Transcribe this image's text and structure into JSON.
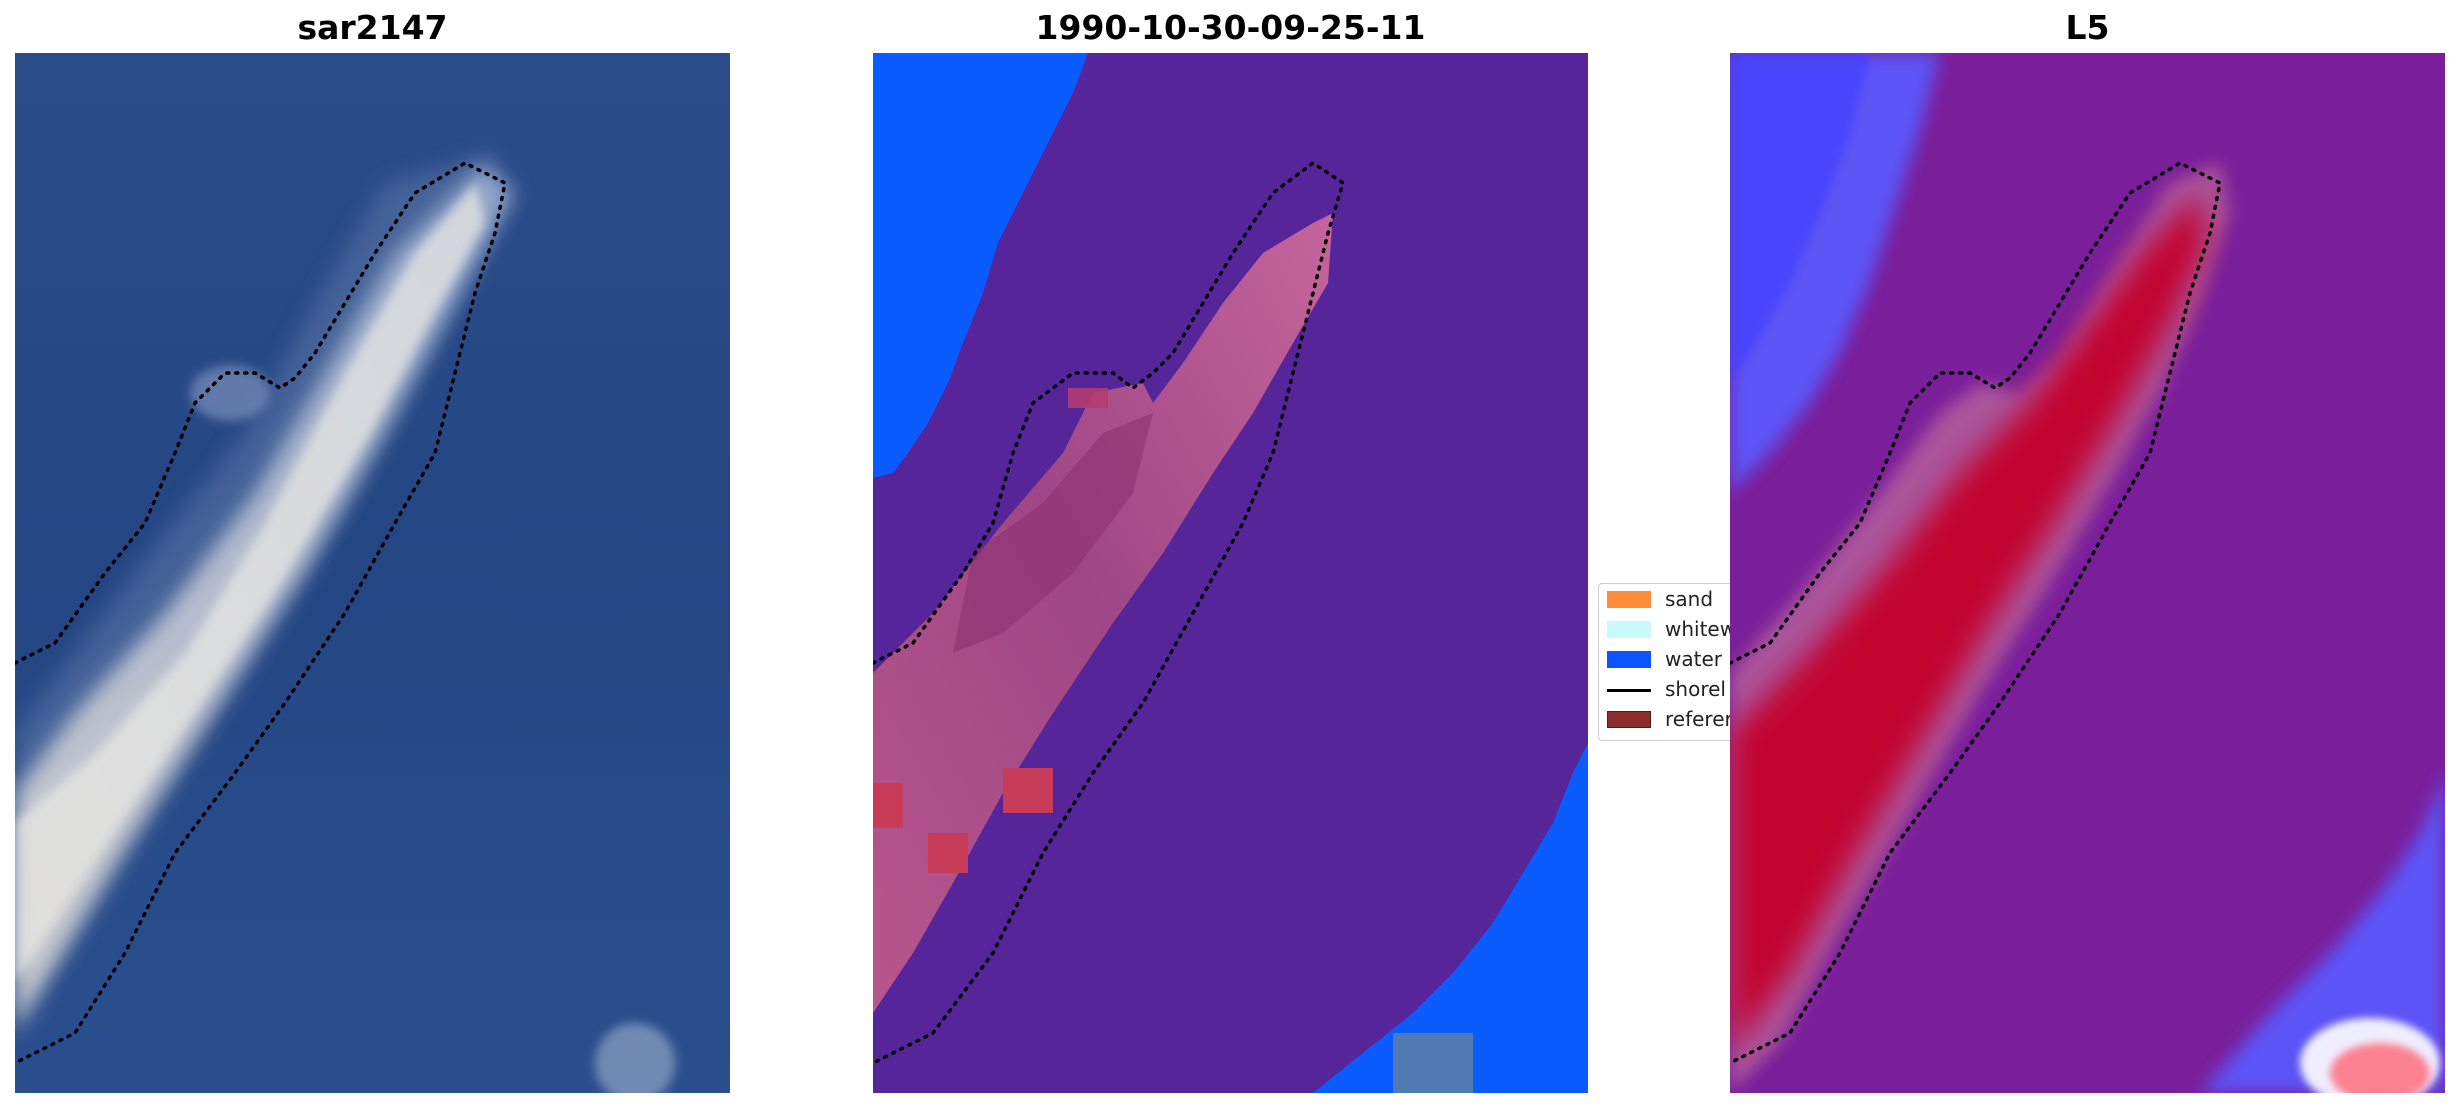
{
  "panels": [
    {
      "title": "sar2147"
    },
    {
      "title": "1990-10-30-09-25-11"
    },
    {
      "title": "L5"
    }
  ],
  "legend": {
    "items": [
      {
        "label": "sand",
        "color": "#ff8c3a",
        "kind": "patch"
      },
      {
        "label": "whitew",
        "color": "#c9fbfb",
        "kind": "patch"
      },
      {
        "label": "water",
        "color": "#0a55ff",
        "kind": "patch"
      },
      {
        "label": "shorel",
        "color": "#000000",
        "kind": "line"
      },
      {
        "label": "referer",
        "color": "#8b2d2d",
        "kind": "patch"
      }
    ]
  },
  "colors": {
    "water_rgb": "#244a8a",
    "class_background": "#5a2599",
    "class_water": "#0a5cff",
    "class_land": "#b34a8a",
    "class_reference": "#c83c5a",
    "prob_low": "#4f4fff",
    "prob_mid": "#7a1f9a",
    "prob_high": "#c4002a"
  }
}
